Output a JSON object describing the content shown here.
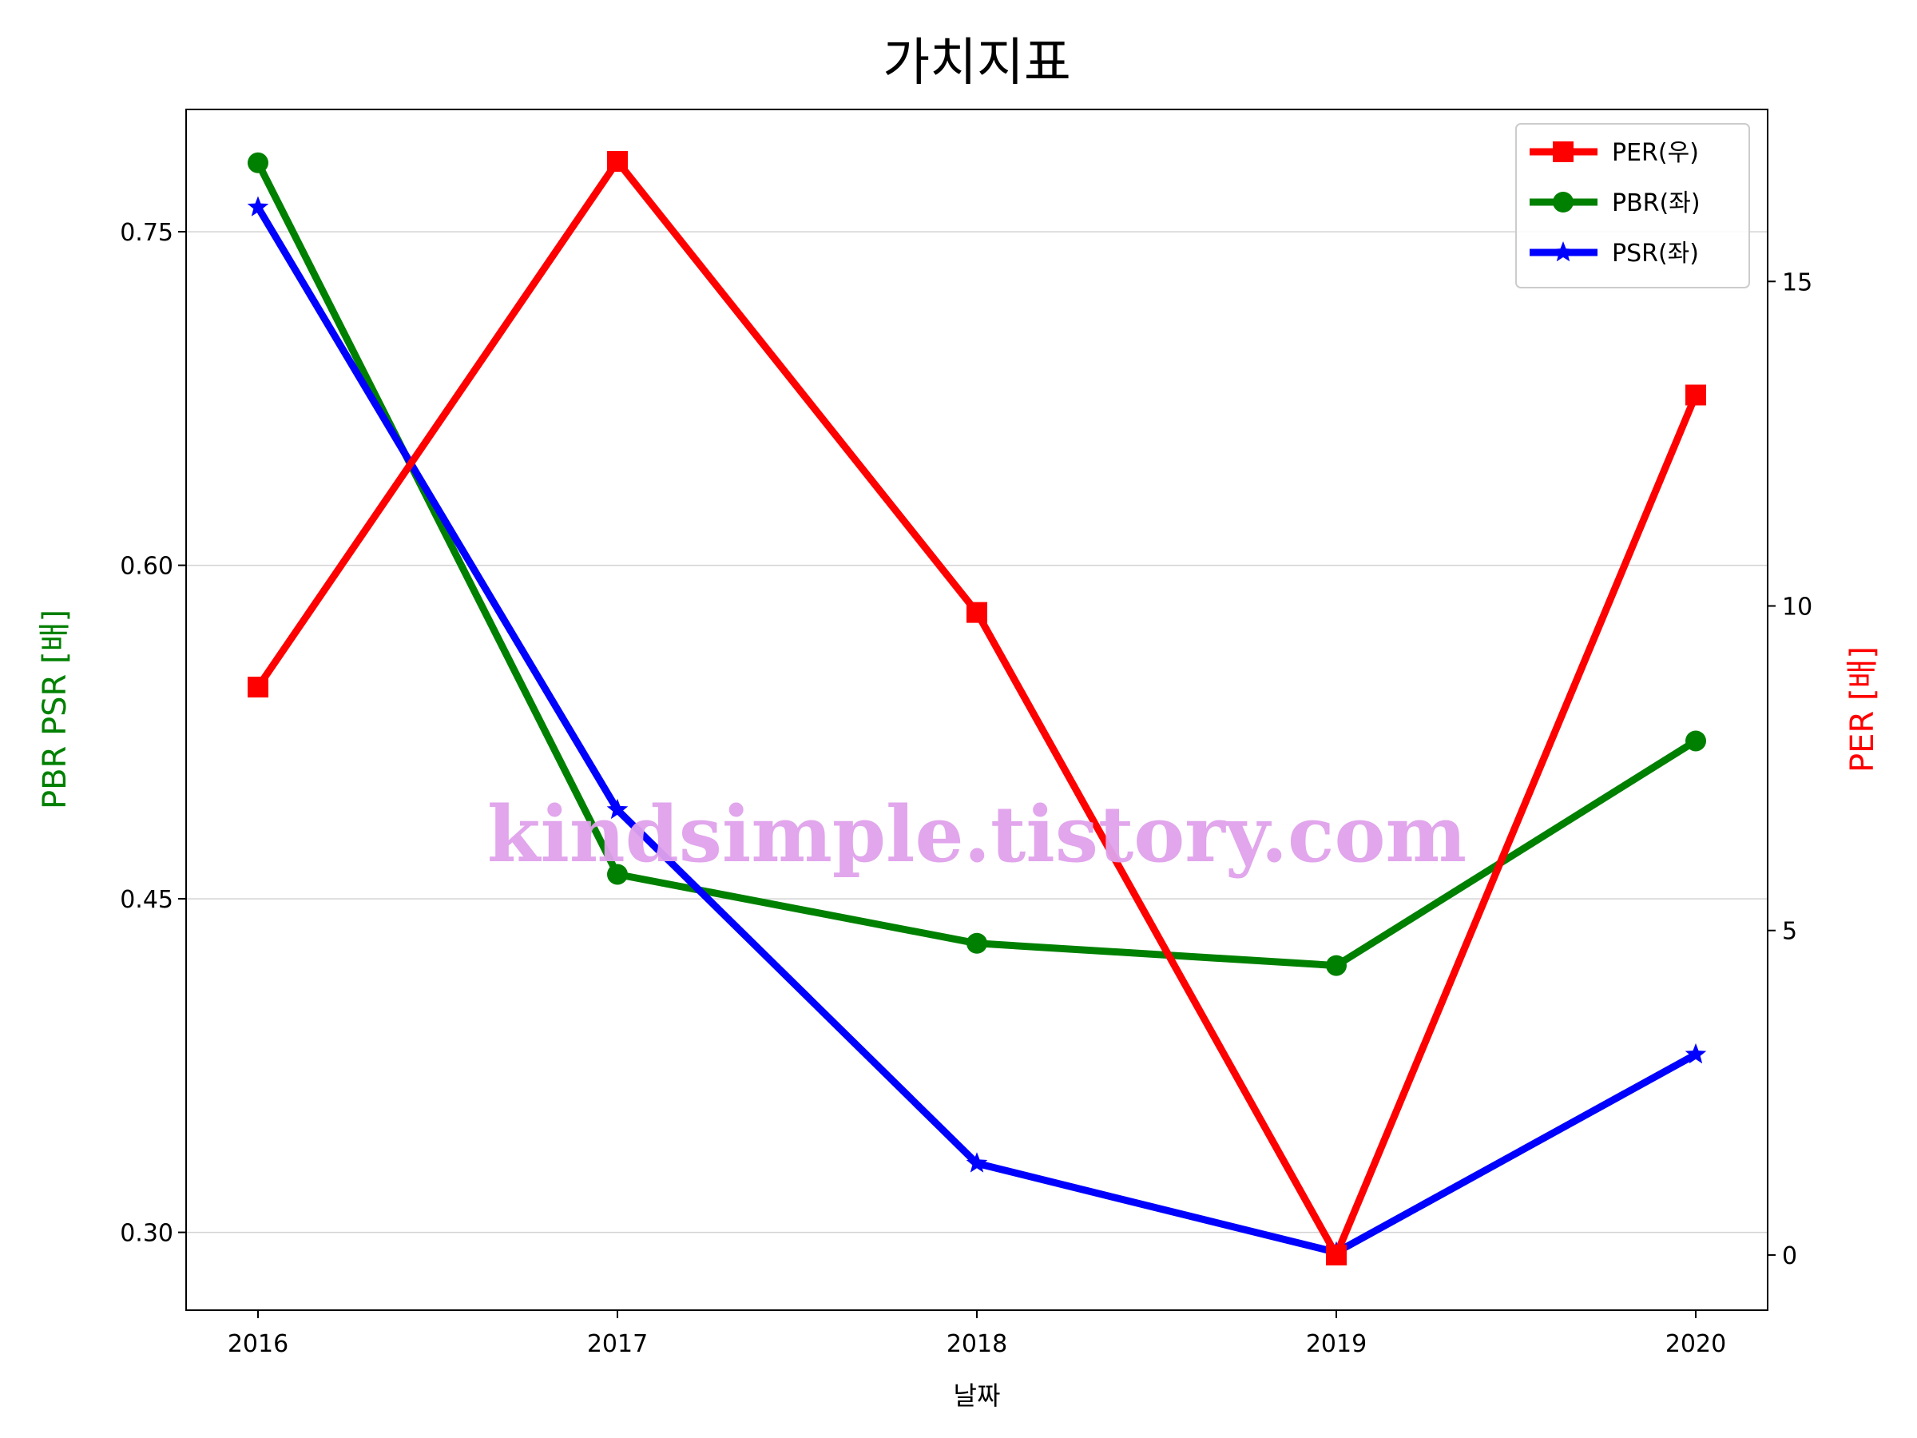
{
  "chart_data": {
    "type": "line",
    "title": "가치지표",
    "xlabel": "날짜",
    "ylabel_left": "PBR PSR [배]",
    "ylabel_right": "PER [배]",
    "categories": [
      "2016",
      "2017",
      "2018",
      "2019",
      "2020"
    ],
    "ylim_left": [
      0.265,
      0.805
    ],
    "ylim_right": [
      -0.85,
      17.65
    ],
    "yticks_left": [
      "0.30",
      "0.45",
      "0.60",
      "0.75"
    ],
    "yticks_right": [
      "0",
      "5",
      "10",
      "15"
    ],
    "grid": "horizontal, left axis",
    "legend_position": "top-right",
    "series": [
      {
        "name": "PER(우)",
        "axis": "right",
        "color": "#ff0000",
        "marker": "square",
        "values": [
          8.75,
          16.85,
          9.9,
          0.0,
          13.25
        ]
      },
      {
        "name": "PBR(좌)",
        "axis": "left",
        "color": "#008000",
        "marker": "circle",
        "values": [
          0.781,
          0.461,
          0.43,
          0.42,
          0.521
        ]
      },
      {
        "name": "PSR(좌)",
        "axis": "left",
        "color": "#0000ff",
        "marker": "star",
        "values": [
          0.761,
          0.49,
          0.331,
          0.291,
          0.38
        ]
      }
    ]
  },
  "watermark": "kindsimple.tistory.com",
  "colors": {
    "left_axis_label": "#008000",
    "right_axis_label": "#ff0000",
    "grid": "#d3d3d3"
  }
}
